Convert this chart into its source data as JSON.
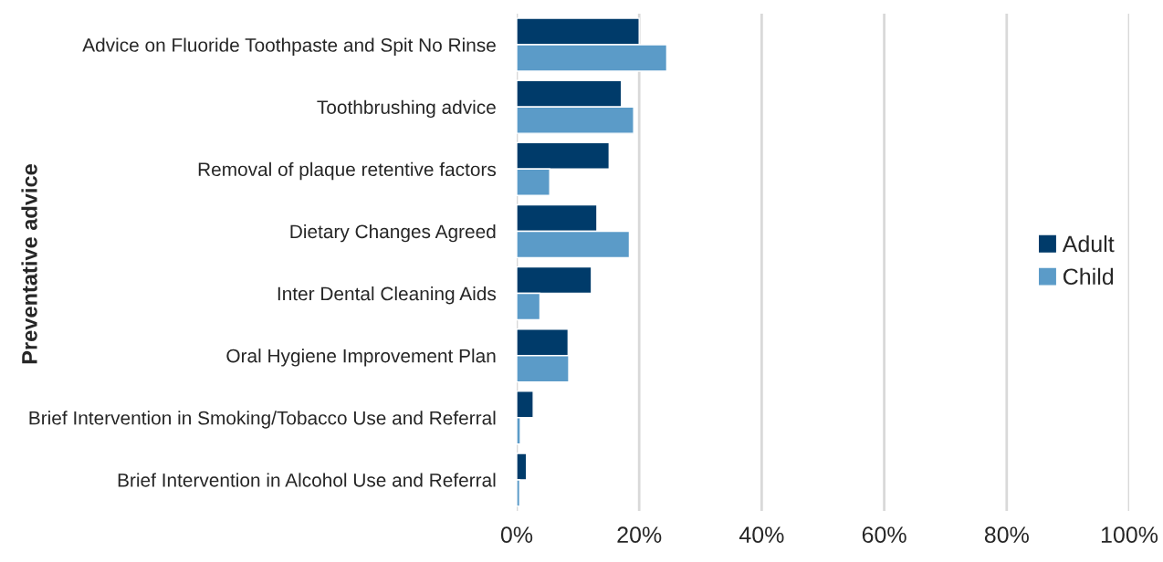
{
  "chart_data": {
    "type": "bar",
    "orientation": "horizontal",
    "ylabel": "Preventative advice",
    "categories": [
      "Advice on Fluoride Toothpaste and Spit No Rinse",
      "Toothbrushing advice",
      "Removal of plaque retentive factors",
      "Dietary Changes Agreed",
      "Inter Dental Cleaning Aids",
      "Oral Hygiene Improvement Plan",
      "Brief Intervention in Smoking/Tobacco Use and Referral",
      "Brief Intervention in Alcohol Use and Referral"
    ],
    "series": [
      {
        "name": "Adult",
        "color": "#003b6a",
        "values": [
          20.0,
          17.1,
          15.1,
          13.1,
          12.2,
          8.4,
          2.7,
          1.6
        ]
      },
      {
        "name": "Child",
        "color": "#5b9bc8",
        "values": [
          24.5,
          19.1,
          5.4,
          18.4,
          3.8,
          8.5,
          0.6,
          0.5
        ]
      }
    ],
    "xlim": [
      0,
      100
    ],
    "xticks": [
      {
        "value": 0,
        "label": "0%"
      },
      {
        "value": 20,
        "label": "20%"
      },
      {
        "value": 40,
        "label": "40%"
      },
      {
        "value": 60,
        "label": "60%"
      },
      {
        "value": 80,
        "label": "80%"
      },
      {
        "value": 100,
        "label": "100%"
      }
    ],
    "grid": "x",
    "legend": "right"
  }
}
